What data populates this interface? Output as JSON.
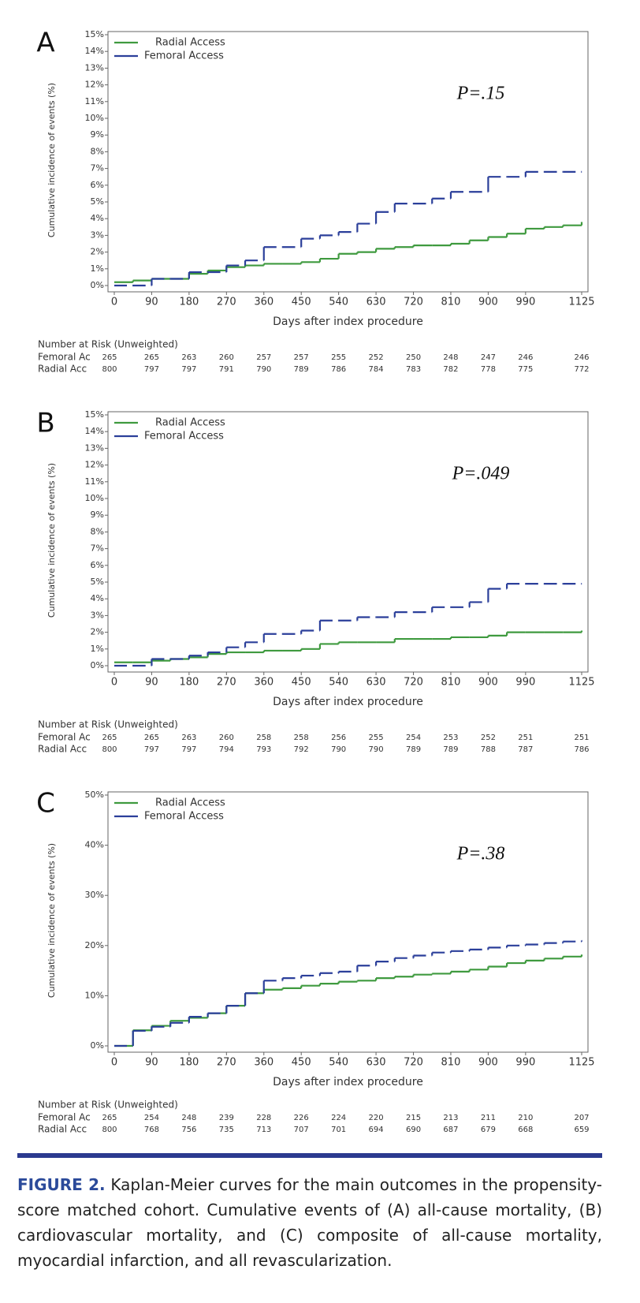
{
  "chart_data": [
    {
      "type": "step",
      "panel_label": "A",
      "ylabel": "Cumulative incidence of events (%)",
      "xlabel": "Days after index procedure",
      "annotation": "P=.15",
      "x": [
        0,
        45,
        90,
        135,
        180,
        225,
        270,
        315,
        360,
        405,
        450,
        495,
        540,
        585,
        630,
        675,
        720,
        765,
        810,
        855,
        900,
        945,
        990,
        1035,
        1080,
        1125
      ],
      "series": [
        {
          "name": "Radial Access",
          "color": "#3f9a3f",
          "dash": false,
          "values": [
            0.2,
            0.3,
            0.4,
            0.4,
            0.7,
            0.9,
            1.1,
            1.2,
            1.3,
            1.3,
            1.4,
            1.6,
            1.9,
            2.0,
            2.2,
            2.3,
            2.4,
            2.4,
            2.5,
            2.7,
            2.9,
            3.1,
            3.4,
            3.5,
            3.6,
            3.8
          ]
        },
        {
          "name": "Femoral Access",
          "color": "#2b3f9a",
          "dash": true,
          "values": [
            0,
            0,
            0.4,
            0.4,
            0.8,
            0.8,
            1.2,
            1.5,
            2.3,
            2.3,
            2.8,
            3.0,
            3.2,
            3.7,
            4.4,
            4.9,
            4.9,
            5.2,
            5.6,
            5.6,
            6.5,
            6.5,
            6.8,
            6.8,
            6.8,
            6.8
          ]
        }
      ],
      "xlim": [
        0,
        1125
      ],
      "xticks": [
        0,
        90,
        180,
        270,
        360,
        450,
        540,
        630,
        720,
        810,
        900,
        990,
        1125
      ],
      "ylim": [
        0,
        15
      ],
      "yticks": [
        {
          "value": 0,
          "label": "0%"
        },
        {
          "value": 1,
          "label": "1%"
        },
        {
          "value": 2,
          "label": "2%"
        },
        {
          "value": 3,
          "label": "3%"
        },
        {
          "value": 4,
          "label": "4%"
        },
        {
          "value": 5,
          "label": "5%"
        },
        {
          "value": 6,
          "label": "6%"
        },
        {
          "value": 7,
          "label": "7%"
        },
        {
          "value": 8,
          "label": "8%"
        },
        {
          "value": 9,
          "label": "9%"
        },
        {
          "value": 10,
          "label": "10%"
        },
        {
          "value": 11,
          "label": "11%"
        },
        {
          "value": 12,
          "label": "12%"
        },
        {
          "value": 13,
          "label": "13%"
        },
        {
          "value": 14,
          "label": "14%"
        },
        {
          "value": 15,
          "label": "15%"
        }
      ],
      "risk_table": {
        "title": "Number at Risk (Unweighted)",
        "rows": [
          {
            "label": "Femoral Ac",
            "values": [
              265,
              265,
              263,
              260,
              257,
              257,
              255,
              252,
              250,
              248,
              247,
              246,
              246
            ]
          },
          {
            "label": "Radial Acc",
            "values": [
              800,
              797,
              797,
              791,
              790,
              789,
              786,
              784,
              783,
              782,
              778,
              775,
              772
            ]
          }
        ]
      }
    },
    {
      "type": "step",
      "panel_label": "B",
      "ylabel": "Cumulative incidence of events (%)",
      "xlabel": "Days after index procedure",
      "annotation": "P=.049",
      "x": [
        0,
        45,
        90,
        135,
        180,
        225,
        270,
        315,
        360,
        405,
        450,
        495,
        540,
        585,
        630,
        675,
        720,
        765,
        810,
        855,
        900,
        945,
        990,
        1035,
        1080,
        1125
      ],
      "series": [
        {
          "name": "Radial Access",
          "color": "#3f9a3f",
          "dash": false,
          "values": [
            0.2,
            0.2,
            0.3,
            0.4,
            0.5,
            0.7,
            0.8,
            0.8,
            0.9,
            0.9,
            1.0,
            1.3,
            1.4,
            1.4,
            1.4,
            1.6,
            1.6,
            1.6,
            1.7,
            1.7,
            1.8,
            2.0,
            2.0,
            2.0,
            2.0,
            2.1
          ]
        },
        {
          "name": "Femoral Access",
          "color": "#2b3f9a",
          "dash": true,
          "values": [
            0,
            0,
            0.4,
            0.4,
            0.6,
            0.8,
            1.1,
            1.4,
            1.9,
            1.9,
            2.1,
            2.7,
            2.7,
            2.9,
            2.9,
            3.2,
            3.2,
            3.5,
            3.5,
            3.8,
            4.6,
            4.9,
            4.9,
            4.9,
            4.9,
            4.9
          ]
        }
      ],
      "xlim": [
        0,
        1125
      ],
      "xticks": [
        0,
        90,
        180,
        270,
        360,
        450,
        540,
        630,
        720,
        810,
        900,
        990,
        1125
      ],
      "ylim": [
        0,
        15
      ],
      "yticks": [
        {
          "value": 0,
          "label": "0%"
        },
        {
          "value": 1,
          "label": "1%"
        },
        {
          "value": 2,
          "label": "2%"
        },
        {
          "value": 3,
          "label": "3%"
        },
        {
          "value": 4,
          "label": "4%"
        },
        {
          "value": 5,
          "label": "5%"
        },
        {
          "value": 6,
          "label": "6%"
        },
        {
          "value": 7,
          "label": "7%"
        },
        {
          "value": 8,
          "label": "8%"
        },
        {
          "value": 9,
          "label": "9%"
        },
        {
          "value": 10,
          "label": "10%"
        },
        {
          "value": 11,
          "label": "11%"
        },
        {
          "value": 12,
          "label": "12%"
        },
        {
          "value": 13,
          "label": "13%"
        },
        {
          "value": 14,
          "label": "14%"
        },
        {
          "value": 15,
          "label": "15%"
        }
      ],
      "risk_table": {
        "title": "Number at Risk (Unweighted)",
        "rows": [
          {
            "label": "Femoral Ac",
            "values": [
              265,
              265,
              263,
              260,
              258,
              258,
              256,
              255,
              254,
              253,
              252,
              251,
              251
            ]
          },
          {
            "label": "Radial Acc",
            "values": [
              800,
              797,
              797,
              794,
              793,
              792,
              790,
              790,
              789,
              789,
              788,
              787,
              786
            ]
          }
        ]
      }
    },
    {
      "type": "step",
      "panel_label": "C",
      "ylabel": "Cumulative incidence of events (%)",
      "xlabel": "Days after index procedure",
      "annotation": "P=.38",
      "x": [
        0,
        45,
        90,
        135,
        180,
        225,
        270,
        315,
        360,
        405,
        450,
        495,
        540,
        585,
        630,
        675,
        720,
        765,
        810,
        855,
        900,
        945,
        990,
        1035,
        1080,
        1125
      ],
      "series": [
        {
          "name": "Radial Access",
          "color": "#3f9a3f",
          "dash": false,
          "values": [
            0,
            3.1,
            4.0,
            5.0,
            5.6,
            6.5,
            8.0,
            10.5,
            11.2,
            11.5,
            12.0,
            12.4,
            12.8,
            13.0,
            13.5,
            13.8,
            14.2,
            14.4,
            14.8,
            15.2,
            15.8,
            16.5,
            17.0,
            17.4,
            17.8,
            18.2
          ]
        },
        {
          "name": "Femoral Access",
          "color": "#2b3f9a",
          "dash": true,
          "values": [
            0,
            3.0,
            3.8,
            4.6,
            5.8,
            6.5,
            8.0,
            10.5,
            13.0,
            13.5,
            14.0,
            14.5,
            14.8,
            16.0,
            16.8,
            17.5,
            18.0,
            18.6,
            18.9,
            19.2,
            19.6,
            20.0,
            20.2,
            20.5,
            20.8,
            21.0
          ]
        }
      ],
      "xlim": [
        0,
        1125
      ],
      "xticks": [
        0,
        90,
        180,
        270,
        360,
        450,
        540,
        630,
        720,
        810,
        900,
        990,
        1125
      ],
      "ylim": [
        0,
        50
      ],
      "yticks": [
        {
          "value": 0,
          "label": "0%"
        },
        {
          "value": 10,
          "label": "10%"
        },
        {
          "value": 20,
          "label": "20%"
        },
        {
          "value": 30,
          "label": "30%"
        },
        {
          "value": 40,
          "label": "40%"
        },
        {
          "value": 50,
          "label": "50%"
        }
      ],
      "risk_table": {
        "title": "Number at Risk (Unweighted)",
        "rows": [
          {
            "label": "Femoral Ac",
            "values": [
              265,
              254,
              248,
              239,
              228,
              226,
              224,
              220,
              215,
              213,
              211,
              210,
              207
            ]
          },
          {
            "label": "Radial Acc",
            "values": [
              800,
              768,
              756,
              735,
              713,
              707,
              701,
              694,
              690,
              687,
              679,
              668,
              659
            ]
          }
        ]
      }
    }
  ],
  "caption": {
    "label": "FIGURE 2.",
    "text": "Kaplan-Meier curves for the main outcomes in the propensity-score matched cohort. Cumulative events of (A) all-cause mortality, (B) cardiovascular mortality, and (C) composite of all-cause mortality, myocardial infarction, and all revascularization."
  }
}
